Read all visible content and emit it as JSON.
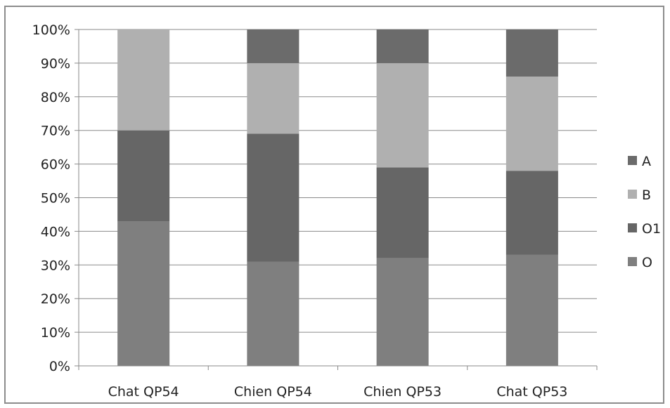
{
  "chart_data": {
    "type": "bar",
    "stacked": true,
    "percent": true,
    "categories": [
      "Chat QP54",
      "Chien QP54",
      "Chien QP53",
      "Chat QP53"
    ],
    "series": [
      {
        "name": "O",
        "color": "#7f7f7f",
        "values": [
          43,
          31,
          32,
          33
        ]
      },
      {
        "name": "O1",
        "color": "#666666",
        "values": [
          27,
          38,
          27,
          25
        ]
      },
      {
        "name": "B",
        "color": "#b0b0b0",
        "values": [
          30,
          21,
          31,
          28
        ]
      },
      {
        "name": "A",
        "color": "#6b6b6b",
        "values": [
          0,
          10,
          10,
          14
        ]
      }
    ],
    "y_ticks": [
      "0%",
      "10%",
      "20%",
      "30%",
      "40%",
      "50%",
      "60%",
      "70%",
      "80%",
      "90%",
      "100%"
    ],
    "ylim": [
      0,
      100
    ],
    "grid": true,
    "legend_position": "right",
    "legend_order": [
      "A",
      "B",
      "O1",
      "O"
    ],
    "title": "",
    "xlabel": "",
    "ylabel": ""
  }
}
